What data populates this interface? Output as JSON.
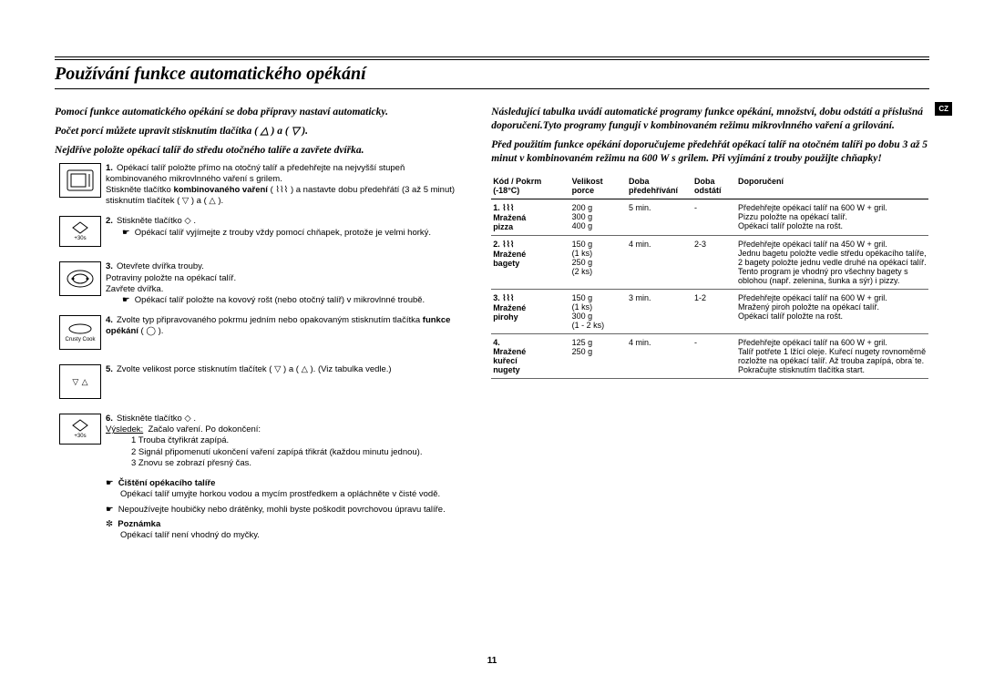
{
  "page": {
    "title": "Používání funkce automatického opékání",
    "intro_left_1": "Pomocí funkce automatického opékání se doba přípravy nastaví automaticky.",
    "intro_left_2": "Počet porcí můžete upravit stisknutím tlačítka ( △ ) a ( ▽ ).",
    "intro_left_3": "Nejdříve položte opékací talíř do středu otočného talíře a zavřete dvířka.",
    "intro_right_1": "Následující tabulka uvádí automatické programy funkce opékání, množství, dobu odstátí a příslušná doporučení.Tyto programy fungují v kombinovaném režimu mikrovlnného vaření a grilování.",
    "intro_right_2": "Před použitím funkce opékání doporučujeme předehřát opékací talíř na otočném talíři po dobu 3 až 5 minut v kombinovaném režimu na 600 W s grilem. Při vyjímání z trouby použijte chňapky!",
    "badge": "CZ",
    "page_number": "11"
  },
  "steps": [
    {
      "num": "1.",
      "text": "Opékací talíř položte přímo na otočný talíř a předehřejte na nejvyšší stupeň kombinovaného mikrovlnného vaření s grilem.",
      "text2": "Stiskněte tlačítko kombinovaného vaření ( ⌇⌇⌇ ) a nastavte dobu předehřátí (3 až 5 minut) stisknutím tlačítek ( ▽ ) a ( △ )."
    },
    {
      "num": "2.",
      "text": "Stiskněte tlačítko ◇ .",
      "tip": "Opékací talíř vyjímejte z trouby vždy pomocí chňapek, protože je velmi horký."
    },
    {
      "num": "3.",
      "text": "Otevřete dvířka trouby.",
      "text2": "Potraviny položte na opékací talíř.",
      "text3": "Zavřete dvířka.",
      "tip": "Opékací talíř položte na kovový rošt (nebo otočný talíř) v mikrovlnné troubě."
    },
    {
      "num": "4.",
      "text": "Zvolte typ připravovaného pokrmu jedním nebo opakovaným stisknutím tlačítka funkce opékání ( ◯ )."
    },
    {
      "num": "5.",
      "text": "Zvolte velikost porce stisknutím tlačítek ( ▽ ) a ( △ ). (Viz tabulka vedle.)"
    },
    {
      "num": "6.",
      "text": "Stiskněte tlačítko ◇ .",
      "result_label": "Výsledek:",
      "result_text": "Začalo vaření. Po dokončení:",
      "sub": [
        "1   Trouba čtyřikrát zapípá.",
        "2   Signál připomenutí ukončení vaření zapípá třikrát (každou minutu jednou).",
        "3   Znovu se zobrazí přesný čas."
      ]
    }
  ],
  "notes": {
    "clean_title": "Čištění opékacího talíře",
    "clean_text": "Opékací talíř umyjte horkou vodou a mycím prostředkem a opláchněte v čisté vodě.",
    "warn": "Nepoužívejte houbičky nebo drátěnky, mohli byste poškodit povrchovou úpravu talíře.",
    "note_title": "Poznámka",
    "note_text": "Opékací talíř není vhodný do myčky."
  },
  "table": {
    "headers": [
      "Kód / Pokrm (-18°C)",
      "Velikost porce",
      "Doba předehřívání",
      "Doba odstátí",
      "Doporučení"
    ],
    "rows": [
      {
        "code_line1": "1. ⌇⌇⌇",
        "code_line2": "Mražená pizza",
        "size": "200 g\n300 g\n400 g",
        "preheat": "5 min.",
        "stand": "-",
        "rec": "Předehřejte opékací talíř na 600 W + gril.\nPizzu položte na opékací talíř.\nOpékací talíř položte na rošt."
      },
      {
        "code_line1": "2. ⌇⌇⌇",
        "code_line2": "Mražené bagety",
        "size": "150 g\n(1 ks)\n250 g\n(2 ks)",
        "preheat": "4 min.",
        "stand": "2-3",
        "rec": "Předehřejte opékací talíř na 450 W + gril.\nJednu bagetu položte vedle středu opékacího talíře, 2 bagety položte jednu vedle druhé na opékací talíř. Tento program je vhodný pro všechny bagety s oblohou (např. zelenina, šunka a sýr) i pizzy."
      },
      {
        "code_line1": "3. ⌇⌇⌇",
        "code_line2": "Mražené pirohy",
        "size": "150 g\n(1 ks)\n300 g\n(1 - 2 ks)",
        "preheat": "3 min.",
        "stand": "1-2",
        "rec": "Předehřejte opékací talíř na 600 W + gril.\nMražený piroh položte na opékací talíř.\nOpékací talíř položte na rošt."
      },
      {
        "code_line1": "4.",
        "code_line2": "Mražené kuřecí nugety",
        "size": "125 g\n250 g",
        "preheat": "4 min.",
        "stand": "-",
        "rec": "Předehřejte opékací talíř na 600 W + gril.\nTalíř potřete 1 lžící oleje. Kuřecí nugety rovnoměrně rozložte na opékací talíř. Až trouba zapípá, obra˙te. Pokračujte stisknutím tlačítka start."
      }
    ]
  }
}
